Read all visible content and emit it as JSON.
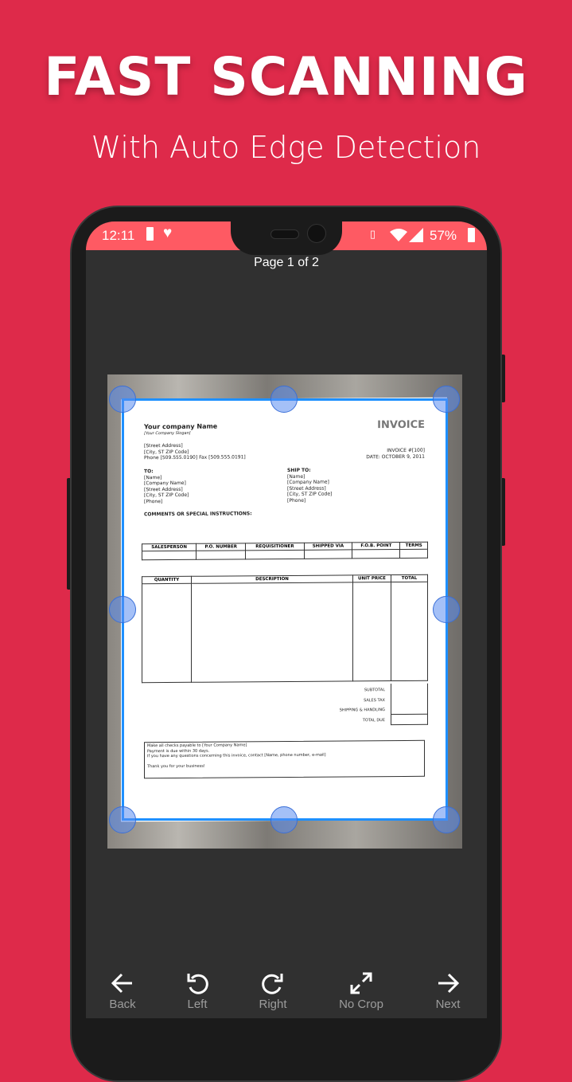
{
  "promo": {
    "headline": "FAST SCANNING",
    "subheadline": "With Auto Edge Detection"
  },
  "status_bar": {
    "time": "12:11",
    "battery": "57%",
    "icons": [
      "battery-charging-icon",
      "heart-check-icon",
      "vibrate-icon",
      "wifi-icon",
      "signal-roaming-icon",
      "battery-icon"
    ]
  },
  "page_indicator": "Page 1 of 2",
  "invoice": {
    "company": "Your company Name",
    "slogan": "[Your Company Slogan]",
    "title": "INVOICE",
    "address": [
      "[Street Address]",
      "[City, ST  ZIP Code]",
      "Phone [509.555.0190]  Fax [509.555.0191]"
    ],
    "invoice_no": "INVOICE #[100]",
    "date": "DATE: OCTOBER 9, 2011",
    "to_label": "TO:",
    "to": [
      "[Name]",
      "[Company Name]",
      "[Street Address]",
      "[City, ST  ZIP Code]",
      "[Phone]"
    ],
    "ship_label": "SHIP TO:",
    "ship": [
      "[Name]",
      "[Company Name]",
      "[Street Address]",
      "[City, ST  ZIP Code]",
      "[Phone]"
    ],
    "comments": "COMMENTS OR SPECIAL INSTRUCTIONS:",
    "table1": [
      "SALESPERSON",
      "P.O. NUMBER",
      "REQUISITIONER",
      "SHIPPED VIA",
      "F.O.B. POINT",
      "TERMS"
    ],
    "table2": [
      "QUANTITY",
      "DESCRIPTION",
      "UNIT PRICE",
      "TOTAL"
    ],
    "totals": [
      "SUBTOTAL",
      "SALES TAX",
      "SHIPPING & HANDLING",
      "TOTAL DUE"
    ],
    "footer": [
      "Make all checks payable to [Your Company Name]",
      "Payment is due within 30 days.",
      "If you have any questions concerning this invoice, contact [Name, phone number, e-mail]",
      "Thank you for your business!"
    ]
  },
  "toolbar": {
    "back": "Back",
    "left": "Left",
    "right": "Right",
    "no_crop": "No Crop",
    "next": "Next"
  }
}
